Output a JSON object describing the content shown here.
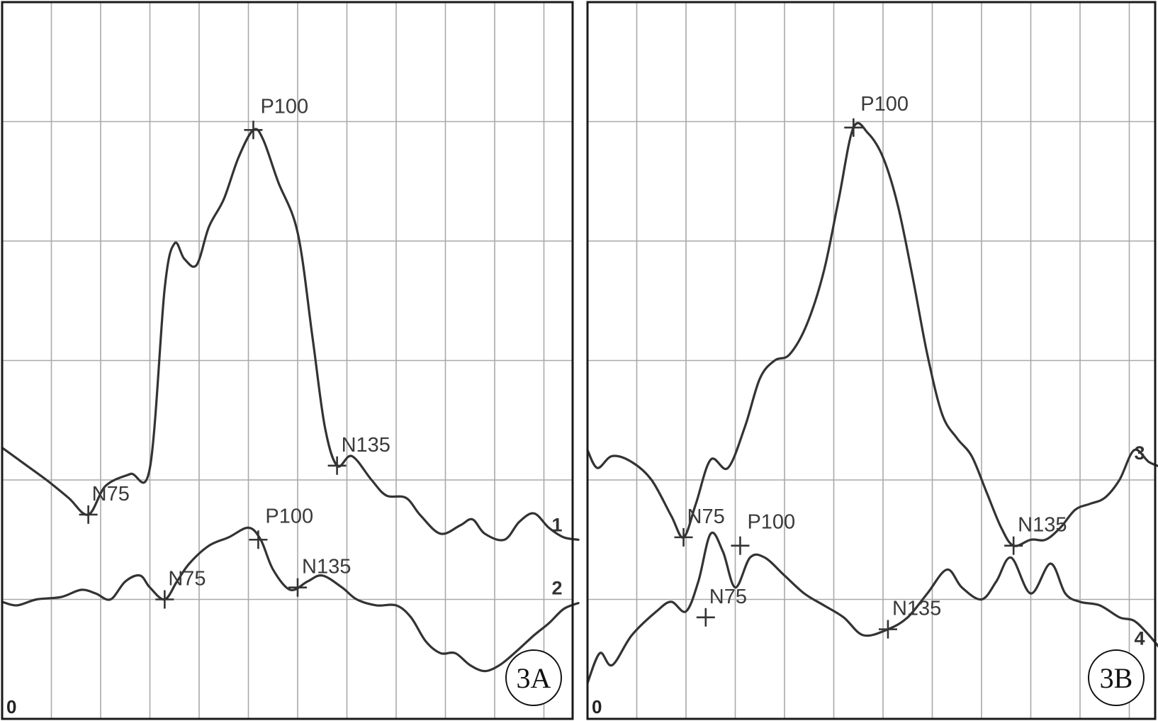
{
  "chart_data": [
    {
      "type": "line",
      "panel_label": "3A",
      "origin_label": "0",
      "x_axis": {
        "divisions": 12,
        "ticks_labeled": false
      },
      "y_axis": {
        "divisions": 6,
        "ticks_labeled": false
      },
      "grid": true,
      "series": [
        {
          "name": "1",
          "points": [
            [
              0,
              2.27
            ],
            [
              0.4,
              2.15
            ],
            [
              0.9,
              2.0
            ],
            [
              1.35,
              1.85
            ],
            [
              1.75,
              1.71
            ],
            [
              2.1,
              1.95
            ],
            [
              2.6,
              2.05
            ],
            [
              3.0,
              2.1
            ],
            [
              3.3,
              3.6
            ],
            [
              3.5,
              3.98
            ],
            [
              3.7,
              3.85
            ],
            [
              3.95,
              3.8
            ],
            [
              4.2,
              4.12
            ],
            [
              4.5,
              4.35
            ],
            [
              4.8,
              4.7
            ],
            [
              5.1,
              4.93
            ],
            [
              5.3,
              4.85
            ],
            [
              5.6,
              4.5
            ],
            [
              6.0,
              4.07
            ],
            [
              6.3,
              3.2
            ],
            [
              6.55,
              2.45
            ],
            [
              6.8,
              2.12
            ],
            [
              7.1,
              2.2
            ],
            [
              7.5,
              2.0
            ],
            [
              7.8,
              1.87
            ],
            [
              8.2,
              1.85
            ],
            [
              8.5,
              1.7
            ],
            [
              8.9,
              1.55
            ],
            [
              9.3,
              1.62
            ],
            [
              9.55,
              1.67
            ],
            [
              9.8,
              1.55
            ],
            [
              10.2,
              1.5
            ],
            [
              10.5,
              1.65
            ],
            [
              10.8,
              1.72
            ],
            [
              11.1,
              1.6
            ],
            [
              11.4,
              1.52
            ],
            [
              11.7,
              1.5
            ]
          ],
          "markers": [
            {
              "label": "N75",
              "x": 1.75,
              "y": 1.71
            },
            {
              "label": "P100",
              "x": 5.1,
              "y": 4.93
            },
            {
              "label": "N135",
              "x": 6.8,
              "y": 2.12
            }
          ]
        },
        {
          "name": "2",
          "points": [
            [
              0,
              0.98
            ],
            [
              0.3,
              0.95
            ],
            [
              0.7,
              1.0
            ],
            [
              1.2,
              1.02
            ],
            [
              1.6,
              1.08
            ],
            [
              1.9,
              1.05
            ],
            [
              2.2,
              1.0
            ],
            [
              2.5,
              1.15
            ],
            [
              2.8,
              1.2
            ],
            [
              3.0,
              1.1
            ],
            [
              3.3,
              1.0
            ],
            [
              3.55,
              1.15
            ],
            [
              3.8,
              1.3
            ],
            [
              4.2,
              1.45
            ],
            [
              4.6,
              1.52
            ],
            [
              5.0,
              1.6
            ],
            [
              5.25,
              1.5
            ],
            [
              5.5,
              1.25
            ],
            [
              5.85,
              1.08
            ],
            [
              6.2,
              1.15
            ],
            [
              6.5,
              1.2
            ],
            [
              6.9,
              1.1
            ],
            [
              7.2,
              1.0
            ],
            [
              7.6,
              0.95
            ],
            [
              8.0,
              0.95
            ],
            [
              8.3,
              0.85
            ],
            [
              8.6,
              0.65
            ],
            [
              8.9,
              0.55
            ],
            [
              9.2,
              0.55
            ],
            [
              9.5,
              0.45
            ],
            [
              9.8,
              0.4
            ],
            [
              10.1,
              0.45
            ],
            [
              10.4,
              0.55
            ],
            [
              10.8,
              0.7
            ],
            [
              11.1,
              0.8
            ],
            [
              11.4,
              0.92
            ],
            [
              11.7,
              0.97
            ]
          ],
          "markers": [
            {
              "label": "N75",
              "x": 3.3,
              "y": 1.0
            },
            {
              "label": "P100",
              "x": 5.2,
              "y": 1.5
            },
            {
              "label": "N135",
              "x": 6.0,
              "y": 1.1
            }
          ]
        }
      ]
    },
    {
      "type": "line",
      "panel_label": "3B",
      "origin_label": "0",
      "x_axis": {
        "divisions": 12,
        "ticks_labeled": false
      },
      "y_axis": {
        "divisions": 6,
        "ticks_labeled": false
      },
      "grid": true,
      "series": [
        {
          "name": "3",
          "points": [
            [
              0,
              2.25
            ],
            [
              0.2,
              2.1
            ],
            [
              0.5,
              2.2
            ],
            [
              0.9,
              2.15
            ],
            [
              1.3,
              2.0
            ],
            [
              1.7,
              1.7
            ],
            [
              1.95,
              1.52
            ],
            [
              2.2,
              1.8
            ],
            [
              2.5,
              2.17
            ],
            [
              2.85,
              2.1
            ],
            [
              3.2,
              2.45
            ],
            [
              3.5,
              2.85
            ],
            [
              3.8,
              3.0
            ],
            [
              4.1,
              3.05
            ],
            [
              4.45,
              3.3
            ],
            [
              4.8,
              3.75
            ],
            [
              5.1,
              4.35
            ],
            [
              5.4,
              4.95
            ],
            [
              5.7,
              4.9
            ],
            [
              6.0,
              4.7
            ],
            [
              6.3,
              4.3
            ],
            [
              6.6,
              3.7
            ],
            [
              6.9,
              3.05
            ],
            [
              7.2,
              2.55
            ],
            [
              7.5,
              2.35
            ],
            [
              7.8,
              2.2
            ],
            [
              8.1,
              1.9
            ],
            [
              8.4,
              1.6
            ],
            [
              8.65,
              1.45
            ],
            [
              9.0,
              1.5
            ],
            [
              9.3,
              1.5
            ],
            [
              9.6,
              1.6
            ],
            [
              9.9,
              1.75
            ],
            [
              10.2,
              1.8
            ],
            [
              10.5,
              1.85
            ],
            [
              10.8,
              2.0
            ],
            [
              11.1,
              2.25
            ],
            [
              11.4,
              2.15
            ],
            [
              11.7,
              2.1
            ]
          ],
          "markers": [
            {
              "label": "N75",
              "x": 1.95,
              "y": 1.52
            },
            {
              "label": "P100",
              "x": 5.4,
              "y": 4.95
            },
            {
              "label": "N135",
              "x": 8.65,
              "y": 1.45
            }
          ]
        },
        {
          "name": "4",
          "points": [
            [
              0,
              0.3
            ],
            [
              0.25,
              0.55
            ],
            [
              0.5,
              0.45
            ],
            [
              0.9,
              0.7
            ],
            [
              1.4,
              0.9
            ],
            [
              1.7,
              0.98
            ],
            [
              2.0,
              0.9
            ],
            [
              2.25,
              1.15
            ],
            [
              2.5,
              1.55
            ],
            [
              2.75,
              1.4
            ],
            [
              3.0,
              1.1
            ],
            [
              3.3,
              1.35
            ],
            [
              3.6,
              1.35
            ],
            [
              4.0,
              1.2
            ],
            [
              4.4,
              1.05
            ],
            [
              4.8,
              0.95
            ],
            [
              5.2,
              0.85
            ],
            [
              5.6,
              0.7
            ],
            [
              6.1,
              0.75
            ],
            [
              6.5,
              0.85
            ],
            [
              6.9,
              1.05
            ],
            [
              7.3,
              1.25
            ],
            [
              7.6,
              1.1
            ],
            [
              8.0,
              1.0
            ],
            [
              8.3,
              1.15
            ],
            [
              8.6,
              1.35
            ],
            [
              9.0,
              1.05
            ],
            [
              9.4,
              1.3
            ],
            [
              9.7,
              1.05
            ],
            [
              10.0,
              0.98
            ],
            [
              10.4,
              0.95
            ],
            [
              10.8,
              0.85
            ],
            [
              11.1,
              0.82
            ],
            [
              11.4,
              0.7
            ],
            [
              11.7,
              0.55
            ]
          ],
          "markers": [
            {
              "label": "N75",
              "x": 2.4,
              "y": 0.85
            },
            {
              "label": "P100",
              "x": 3.1,
              "y": 1.45
            },
            {
              "label": "N135",
              "x": 6.1,
              "y": 0.75
            }
          ]
        }
      ]
    }
  ]
}
